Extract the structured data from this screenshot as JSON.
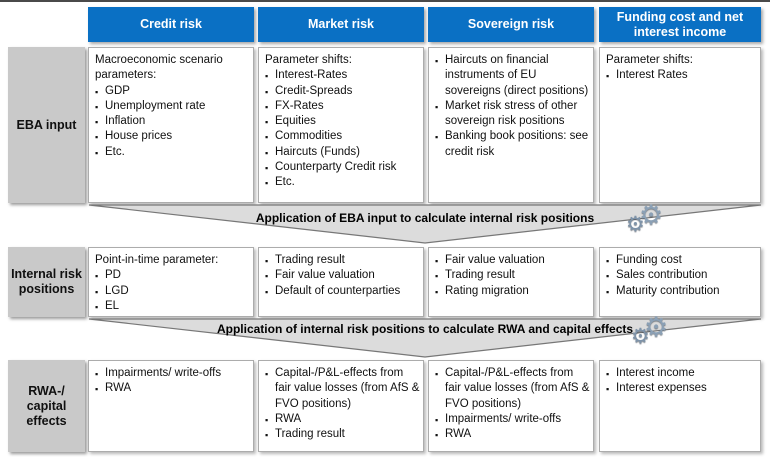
{
  "colors": {
    "header_blue": "#0a70c4",
    "row_label_gray": "#c9c9c9",
    "band_gray": "#dcdcdc",
    "top_line": "#4a4a4a",
    "gear_icon": "#8ba0b5"
  },
  "icons": {
    "gears_glyph": "⚙",
    "bullet_glyph": "▪"
  },
  "columns": [
    {
      "label": "Credit risk"
    },
    {
      "label": "Market risk"
    },
    {
      "label": "Sovereign risk"
    },
    {
      "label": "Funding cost and net interest income"
    }
  ],
  "rows": [
    {
      "label": "EBA input",
      "cells": [
        {
          "intro": "Macroeconomic scenario parameters:",
          "bullets": [
            "GDP",
            "Unemployment rate",
            "Inflation",
            "House prices",
            "Etc."
          ]
        },
        {
          "intro": "Parameter shifts:",
          "bullets": [
            "Interest-Rates",
            "Credit-Spreads",
            "FX-Rates",
            "Equities",
            "Commodities",
            "Haircuts (Funds)",
            "Counterparty Credit risk",
            "Etc."
          ]
        },
        {
          "intro": "",
          "bullets": [
            "Haircuts on  financial instruments of EU sovereigns (direct positions)",
            "Market risk stress of other sovereign risk positions",
            "Banking book positions: see credit risk"
          ]
        },
        {
          "intro": "Parameter shifts:",
          "bullets": [
            "Interest Rates"
          ]
        }
      ]
    },
    {
      "label": "Internal risk positions",
      "cells": [
        {
          "intro": "Point-in-time parameter:",
          "bullets": [
            "PD",
            "LGD",
            "EL"
          ]
        },
        {
          "intro": "",
          "bullets": [
            "Trading result",
            "Fair value valuation",
            "Default of counterparties"
          ]
        },
        {
          "intro": "",
          "bullets": [
            "Fair value valuation",
            "Trading result",
            "Rating migration"
          ]
        },
        {
          "intro": "",
          "bullets": [
            "Funding cost",
            "Sales contribution",
            "Maturity contribution"
          ]
        }
      ]
    },
    {
      "label": "RWA-/ capital effects",
      "cells": [
        {
          "intro": "",
          "bullets": [
            "Impairments/ write-offs",
            "RWA"
          ]
        },
        {
          "intro": "",
          "bullets": [
            "Capital-/P&L-effects from fair value losses (from AfS & FVO positions)",
            "RWA",
            "Trading result"
          ]
        },
        {
          "intro": "",
          "bullets": [
            "Capital-/P&L-effects from fair value losses (from AfS & FVO positions)",
            "Impairments/ write-offs",
            "RWA"
          ]
        },
        {
          "intro": "",
          "bullets": [
            "Interest income",
            "Interest expenses"
          ]
        }
      ]
    }
  ],
  "bands": [
    {
      "text": "Application of EBA input to calculate internal risk positions"
    },
    {
      "text": "Application of internal risk positions to calculate RWA and capital effects"
    }
  ]
}
